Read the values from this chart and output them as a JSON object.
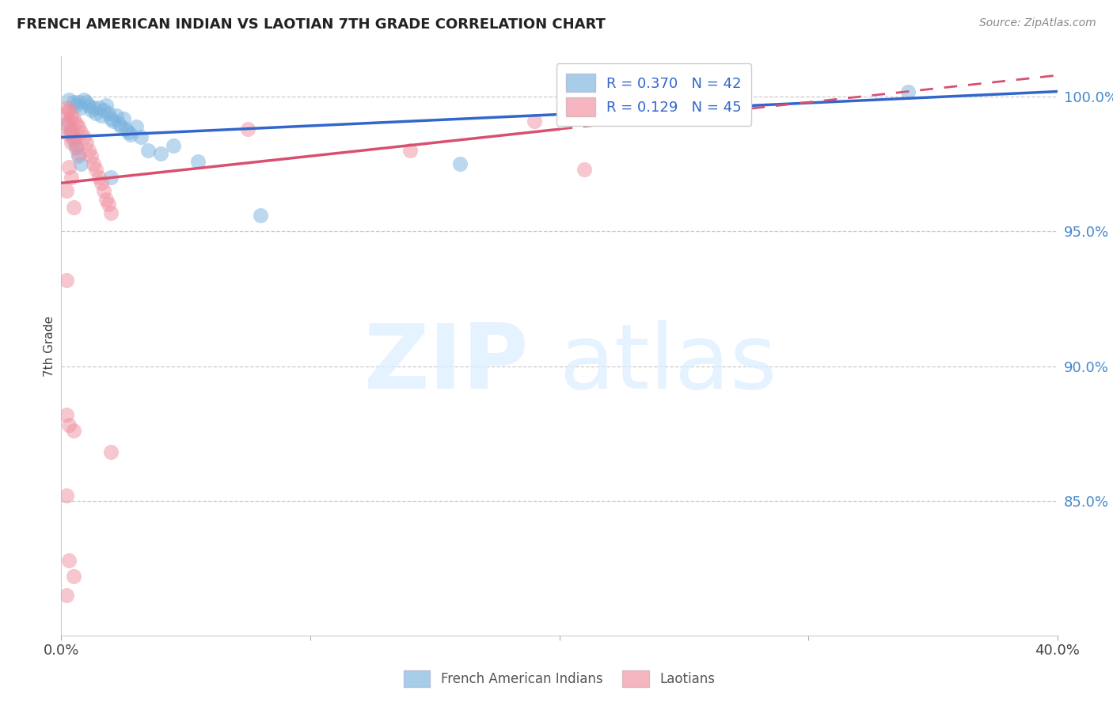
{
  "title": "FRENCH AMERICAN INDIAN VS LAOTIAN 7TH GRADE CORRELATION CHART",
  "source": "Source: ZipAtlas.com",
  "ylabel": "7th Grade",
  "R_blue": 0.37,
  "N_blue": 42,
  "R_pink": 0.129,
  "N_pink": 45,
  "blue_color": "#7ab3de",
  "pink_color": "#f090a0",
  "blue_line_color": "#3366cc",
  "pink_line_color": "#d85070",
  "right_yticks": [
    85.0,
    90.0,
    95.0,
    100.0
  ],
  "xmin": 0.0,
  "xmax": 40.0,
  "ymin": 80.0,
  "ymax": 101.5,
  "blue_trend_x": [
    0.0,
    40.0
  ],
  "blue_trend_y": [
    98.5,
    100.2
  ],
  "pink_trend_x": [
    0.0,
    40.0
  ],
  "pink_trend_y": [
    96.8,
    100.8
  ],
  "pink_solid_end_x": 20.0,
  "blue_x": [
    0.3,
    0.5,
    0.6,
    0.7,
    0.8,
    0.9,
    1.0,
    1.1,
    1.2,
    1.3,
    1.4,
    1.5,
    1.6,
    1.7,
    1.8,
    1.9,
    2.0,
    2.1,
    2.2,
    2.3,
    2.4,
    2.5,
    2.6,
    2.7,
    2.8,
    3.0,
    3.2,
    4.0,
    4.5,
    5.5,
    8.0,
    0.2,
    0.4,
    0.5,
    0.6,
    0.7,
    0.8,
    3.5,
    2.0,
    34.0,
    23.0,
    16.0
  ],
  "blue_y": [
    99.9,
    99.8,
    99.7,
    99.8,
    99.6,
    99.9,
    99.8,
    99.7,
    99.5,
    99.6,
    99.4,
    99.6,
    99.3,
    99.5,
    99.7,
    99.4,
    99.2,
    99.1,
    99.3,
    99.0,
    98.9,
    99.2,
    98.8,
    98.7,
    98.6,
    98.9,
    98.5,
    97.9,
    98.2,
    97.6,
    95.6,
    99.0,
    98.7,
    98.4,
    98.1,
    97.8,
    97.5,
    98.0,
    97.0,
    100.2,
    99.5,
    97.5
  ],
  "pink_x": [
    0.2,
    0.3,
    0.4,
    0.5,
    0.6,
    0.7,
    0.8,
    0.9,
    1.0,
    1.1,
    1.2,
    1.3,
    1.4,
    1.5,
    1.6,
    1.7,
    1.8,
    1.9,
    2.0,
    0.2,
    0.3,
    0.4,
    0.5,
    0.6,
    0.7,
    0.2,
    0.3,
    0.4,
    0.3,
    0.4,
    0.2,
    0.5,
    0.2,
    0.2,
    0.5,
    0.2,
    0.3,
    2.0,
    7.5,
    14.0,
    19.0,
    21.0,
    0.3,
    0.5,
    0.2
  ],
  "pink_y": [
    99.6,
    99.5,
    99.3,
    99.2,
    99.0,
    98.9,
    98.7,
    98.5,
    98.3,
    98.0,
    97.8,
    97.5,
    97.3,
    97.0,
    96.8,
    96.5,
    96.2,
    96.0,
    95.7,
    99.4,
    99.1,
    98.8,
    98.5,
    98.2,
    97.9,
    98.9,
    98.6,
    98.3,
    97.4,
    97.0,
    96.5,
    95.9,
    93.2,
    88.2,
    87.6,
    85.2,
    87.8,
    86.8,
    98.8,
    98.0,
    99.1,
    97.3,
    82.8,
    82.2,
    81.5
  ]
}
